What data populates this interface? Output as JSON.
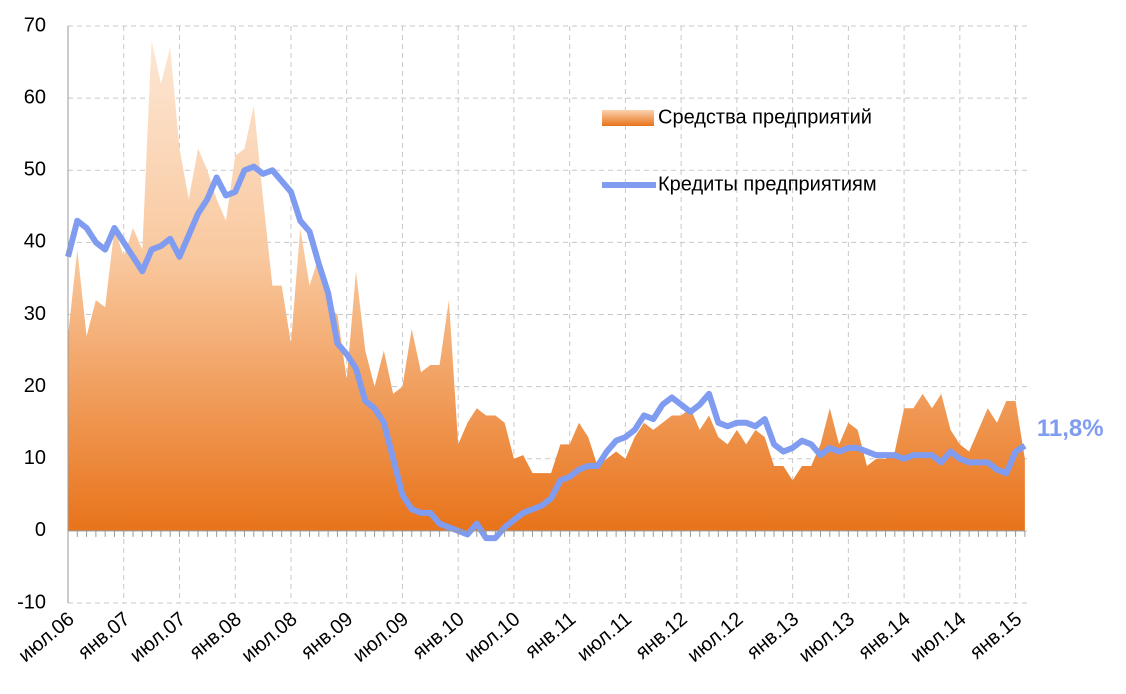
{
  "chart_data": {
    "type": "line",
    "categories": [
      "июл.06",
      null,
      null,
      null,
      null,
      null,
      "янв.07",
      null,
      null,
      null,
      null,
      null,
      "июл.07",
      null,
      null,
      null,
      null,
      null,
      "янв.08",
      null,
      null,
      null,
      null,
      null,
      "июл.08",
      null,
      null,
      null,
      null,
      null,
      "янв.09",
      null,
      null,
      null,
      null,
      null,
      "июл.09",
      null,
      null,
      null,
      null,
      null,
      "янв.10",
      null,
      null,
      null,
      null,
      null,
      "июл.10",
      null,
      null,
      null,
      null,
      null,
      "янв.11",
      null,
      null,
      null,
      null,
      null,
      "июл.11",
      null,
      null,
      null,
      null,
      null,
      "янв.12",
      null,
      null,
      null,
      null,
      null,
      "июл.12",
      null,
      null,
      null,
      null,
      null,
      "янв.13",
      null,
      null,
      null,
      null,
      null,
      "июл.13",
      null,
      null,
      null,
      null,
      null,
      "янв.14",
      null,
      null,
      null,
      null,
      null,
      "июл.14",
      null,
      null,
      null,
      null,
      null,
      "янв.15",
      null
    ],
    "series": [
      {
        "name": "Средства предприятий",
        "type": "area",
        "color": "#e8731a",
        "values": [
          27,
          39,
          27,
          32,
          31,
          42,
          38,
          42,
          39,
          68,
          62,
          67,
          53,
          46,
          53,
          50,
          46,
          43,
          52,
          53,
          59,
          46,
          34,
          34,
          26,
          42,
          34,
          38,
          31,
          30,
          21,
          36,
          25,
          20,
          25,
          19,
          20,
          28,
          22,
          23,
          23,
          32,
          12,
          15,
          17,
          16,
          16,
          15,
          10,
          10.5,
          8,
          8,
          8,
          12,
          12,
          15,
          13,
          9,
          10,
          11,
          10,
          13,
          15,
          14,
          15,
          16,
          16,
          17,
          14,
          16,
          13,
          12,
          14,
          12,
          14,
          13,
          9,
          9,
          7,
          9,
          9,
          12,
          17,
          12,
          15,
          14,
          9,
          10,
          10,
          11,
          17,
          17,
          19,
          17,
          19,
          14,
          12,
          11,
          14,
          17,
          15,
          18,
          18,
          10
        ]
      },
      {
        "name": "Кредиты предприятиям",
        "type": "line",
        "color": "#7f9cf0",
        "values": [
          38,
          43,
          42,
          40,
          39,
          42,
          40,
          38,
          36,
          39,
          39.5,
          40.5,
          38,
          41,
          44,
          46,
          49,
          46.5,
          47,
          50,
          50.5,
          49.5,
          50,
          48.5,
          47,
          43,
          41.5,
          37,
          33,
          26,
          24.5,
          22.5,
          18,
          17,
          15,
          10,
          5,
          3,
          2.5,
          2.5,
          1,
          0.5,
          0,
          -0.5,
          1,
          -1,
          -1,
          0.5,
          1.5,
          2.5,
          3,
          3.5,
          4.5,
          7,
          7.5,
          8.5,
          9,
          9,
          11,
          12.5,
          13,
          14,
          16,
          15.5,
          17.5,
          18.5,
          17.5,
          16.5,
          17.5,
          19,
          15,
          14.5,
          15,
          15,
          14.5,
          15.5,
          12,
          11,
          11.5,
          12.5,
          12,
          10.5,
          11.5,
          11,
          11.5,
          11.5,
          11,
          10.5,
          10.5,
          10.5,
          10,
          10.5,
          10.5,
          10.5,
          9.5,
          11,
          10,
          9.5,
          9.5,
          9.5,
          8.5,
          8,
          11,
          11.8
        ],
        "value_labels": [
          null,
          null,
          null,
          null,
          null,
          null,
          null,
          null,
          null,
          null,
          null,
          null,
          null,
          null,
          null,
          null,
          null,
          null,
          null,
          null,
          null,
          null,
          null,
          null,
          null,
          null,
          null,
          null,
          null,
          null,
          null,
          null,
          null,
          null,
          null,
          null,
          null,
          null,
          null,
          null,
          null,
          null,
          null,
          null,
          null,
          null,
          null,
          null,
          null,
          null,
          null,
          null,
          null,
          null,
          null,
          null,
          null,
          null,
          null,
          null,
          null,
          null,
          null,
          null,
          null,
          null,
          null,
          null,
          null,
          null,
          null,
          null,
          null,
          null,
          null,
          null,
          null,
          null,
          null,
          null,
          null,
          null,
          null,
          null,
          null,
          null,
          null,
          null,
          null,
          null,
          null,
          null,
          null,
          null,
          null,
          null,
          null,
          null,
          null,
          null,
          null,
          null,
          null,
          "11,8%"
        ]
      }
    ],
    "ylim": [
      -10,
      70
    ],
    "yticks": [
      -10,
      0,
      10,
      20,
      30,
      40,
      50,
      60,
      70
    ],
    "grid": true
  }
}
